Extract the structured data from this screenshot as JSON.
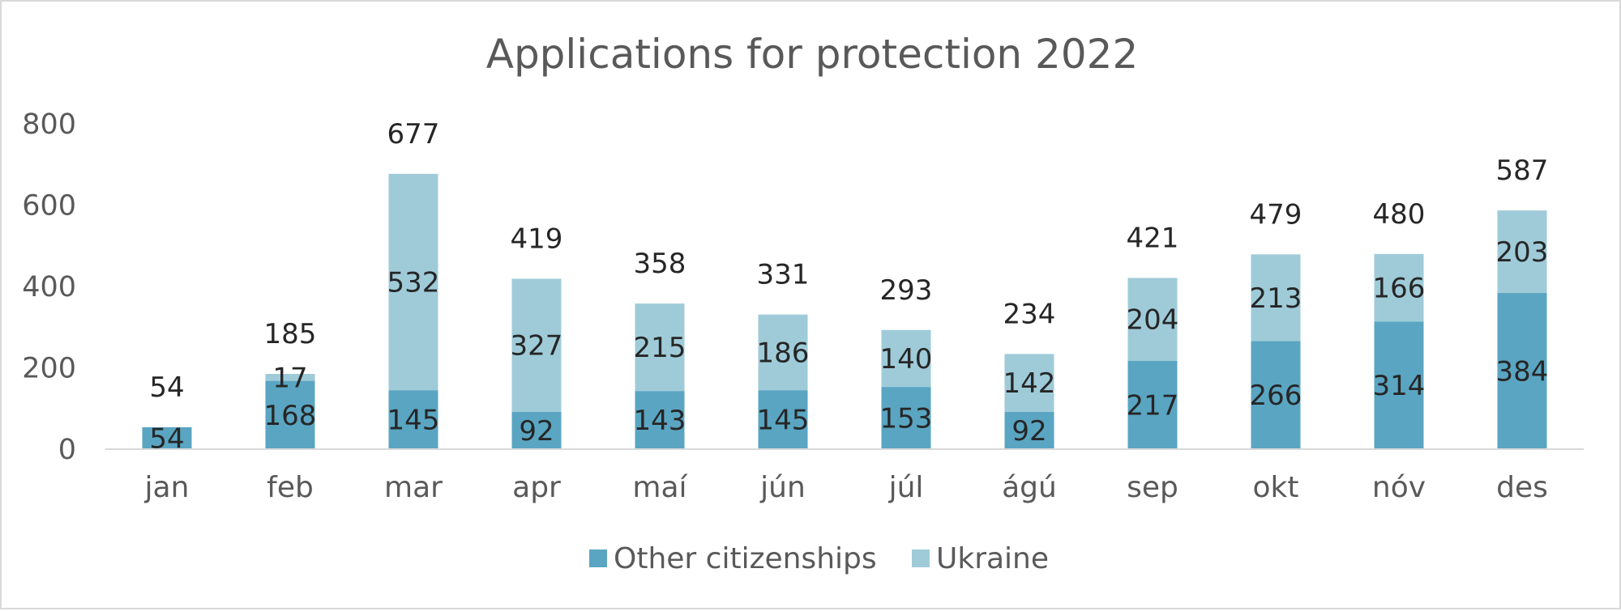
{
  "chart_data": {
    "type": "bar",
    "stacked": true,
    "title": "Applications for protection 2022",
    "categories": [
      "jan",
      "feb",
      "mar",
      "apr",
      "maí",
      "jún",
      "júl",
      "ágú",
      "sep",
      "okt",
      "nóv",
      "des"
    ],
    "series": [
      {
        "name": "Other citizenships",
        "color": "#5aa5c2",
        "values": [
          54,
          168,
          145,
          92,
          143,
          145,
          153,
          92,
          217,
          266,
          314,
          384
        ]
      },
      {
        "name": "Ukraine",
        "color": "#9fcbd9",
        "values": [
          0,
          17,
          532,
          327,
          215,
          186,
          140,
          142,
          204,
          213,
          166,
          203
        ]
      }
    ],
    "totals": [
      54,
      185,
      677,
      419,
      358,
      331,
      293,
      234,
      421,
      479,
      480,
      587
    ],
    "ylim": [
      0,
      800
    ],
    "yticks": [
      0,
      200,
      400,
      600,
      800
    ],
    "grid": false,
    "legend_position": "bottom",
    "xlabel": "",
    "ylabel": ""
  }
}
